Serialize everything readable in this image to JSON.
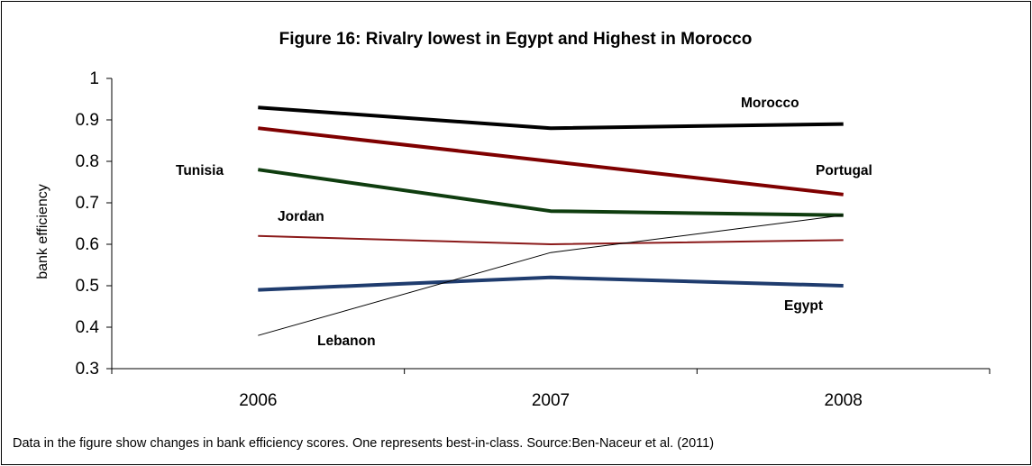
{
  "chart_data": {
    "type": "line",
    "title": "Figure 16: Rivalry lowest in Egypt and Highest in Morocco",
    "xlabel": "",
    "ylabel": "bank efficiency",
    "categories": [
      "2006",
      "2007",
      "2008"
    ],
    "ylim": [
      0.3,
      1
    ],
    "yticks": [
      "0.3",
      "0.4",
      "0.5",
      "0.6",
      "0.7",
      "0.8",
      "0.9",
      "1"
    ],
    "grid": false,
    "series": [
      {
        "name": "Morocco",
        "values": [
          0.93,
          0.88,
          0.89
        ],
        "color": "#000000",
        "width": 4
      },
      {
        "name": "Portugal",
        "values": [
          0.88,
          0.8,
          0.72
        ],
        "color": "#7f0000",
        "width": 4
      },
      {
        "name": "Tunisia",
        "values": [
          0.78,
          0.68,
          0.67
        ],
        "color": "#0f3d0f",
        "width": 4
      },
      {
        "name": "Jordan",
        "values": [
          0.62,
          0.6,
          0.61
        ],
        "color": "#8b1a1a",
        "width": 2
      },
      {
        "name": "Egypt",
        "values": [
          0.49,
          0.52,
          0.5
        ],
        "color": "#1f3c6e",
        "width": 4
      },
      {
        "name": "Lebanon",
        "values": [
          0.38,
          0.58,
          0.67
        ],
        "color": "#000000",
        "width": 1
      }
    ],
    "caption": "Data in the figure show  changes in bank efficiency scores. One represents best-in-class. Source:Ben-Naceur et al. (2011)"
  }
}
